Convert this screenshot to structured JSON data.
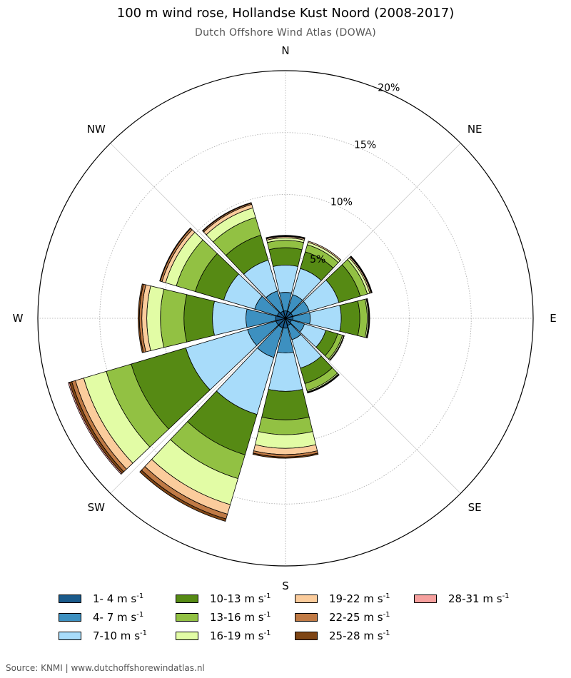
{
  "title": "100 m wind rose, Hollandse Kust Noord (2008-2017)",
  "subtitle": "Dutch Offshore Wind Atlas (DOWA)",
  "source": "Source: KNMI | www.dutchoffshorewindatlas.nl",
  "chart_data": {
    "type": "wind-rose",
    "compass_labels": [
      "N",
      "NE",
      "E",
      "SE",
      "S",
      "SW",
      "W",
      "NW"
    ],
    "radial_ticks": [
      "5%",
      "10%",
      "15%",
      "20%"
    ],
    "radial_tick_values": [
      5,
      10,
      15,
      20
    ],
    "rmax": 20,
    "grid": true,
    "legend_position": "bottom",
    "speed_classes": [
      {
        "label": "1- 4 m s",
        "color": "#1a5a8a"
      },
      {
        "label": "4- 7 m s",
        "color": "#3d90c0"
      },
      {
        "label": "7-10 m s",
        "color": "#a8dcfa"
      },
      {
        "label": "10-13 m s",
        "color": "#568a14"
      },
      {
        "label": "13-16 m s",
        "color": "#92c143"
      },
      {
        "label": "16-19 m s",
        "color": "#e2fca5"
      },
      {
        "label": "19-22 m s",
        "color": "#fbcc9c"
      },
      {
        "label": "22-25 m s",
        "color": "#c07a45"
      },
      {
        "label": "25-28 m s",
        "color": "#7e4515"
      },
      {
        "label": "28-31 m s",
        "color": "#f6a09e"
      }
    ],
    "legend_unit_exponent": "-1",
    "sectors": [
      {
        "direction": 0,
        "cumulative": [
          0.6,
          2.1,
          4.3,
          5.7,
          6.3,
          6.5,
          6.6,
          6.65,
          6.7,
          6.7
        ]
      },
      {
        "direction": 30,
        "cumulative": [
          0.6,
          2.0,
          4.2,
          5.6,
          6.2,
          6.4,
          6.5,
          6.5,
          6.5,
          6.5
        ]
      },
      {
        "direction": 60,
        "cumulative": [
          0.6,
          2.0,
          4.5,
          6.3,
          6.9,
          7.1,
          7.2,
          7.25,
          7.3,
          7.3
        ]
      },
      {
        "direction": 90,
        "cumulative": [
          0.6,
          2.0,
          4.5,
          6.0,
          6.6,
          6.7,
          6.75,
          6.8,
          6.8,
          6.8
        ]
      },
      {
        "direction": 120,
        "cumulative": [
          0.5,
          1.6,
          3.4,
          4.4,
          4.8,
          4.9,
          4.9,
          4.95,
          4.95,
          4.95
        ]
      },
      {
        "direction": 150,
        "cumulative": [
          0.6,
          1.8,
          4.2,
          5.5,
          6.1,
          6.2,
          6.25,
          6.3,
          6.3,
          6.3
        ]
      },
      {
        "direction": 180,
        "cumulative": [
          0.8,
          2.8,
          5.9,
          8.2,
          9.4,
          10.5,
          11.0,
          11.2,
          11.3,
          11.3
        ]
      },
      {
        "direction": 210,
        "cumulative": [
          0.8,
          3.3,
          8.1,
          11.5,
          13.5,
          15.7,
          16.5,
          16.9,
          17.1,
          17.1
        ]
      },
      {
        "direction": 240,
        "cumulative": [
          0.8,
          3.2,
          8.4,
          13.0,
          15.1,
          17.0,
          17.7,
          18.0,
          18.2,
          18.3
        ]
      },
      {
        "direction": 270,
        "cumulative": [
          0.8,
          3.2,
          5.9,
          8.2,
          10.1,
          11.2,
          11.6,
          11.8,
          11.9,
          11.9
        ]
      },
      {
        "direction": 300,
        "cumulative": [
          0.7,
          2.6,
          5.2,
          7.6,
          9.2,
          10.1,
          10.4,
          10.55,
          10.6,
          10.6
        ]
      },
      {
        "direction": 330,
        "cumulative": [
          0.6,
          2.3,
          4.9,
          7.0,
          8.5,
          9.3,
          9.6,
          9.7,
          9.75,
          9.75
        ]
      }
    ]
  }
}
